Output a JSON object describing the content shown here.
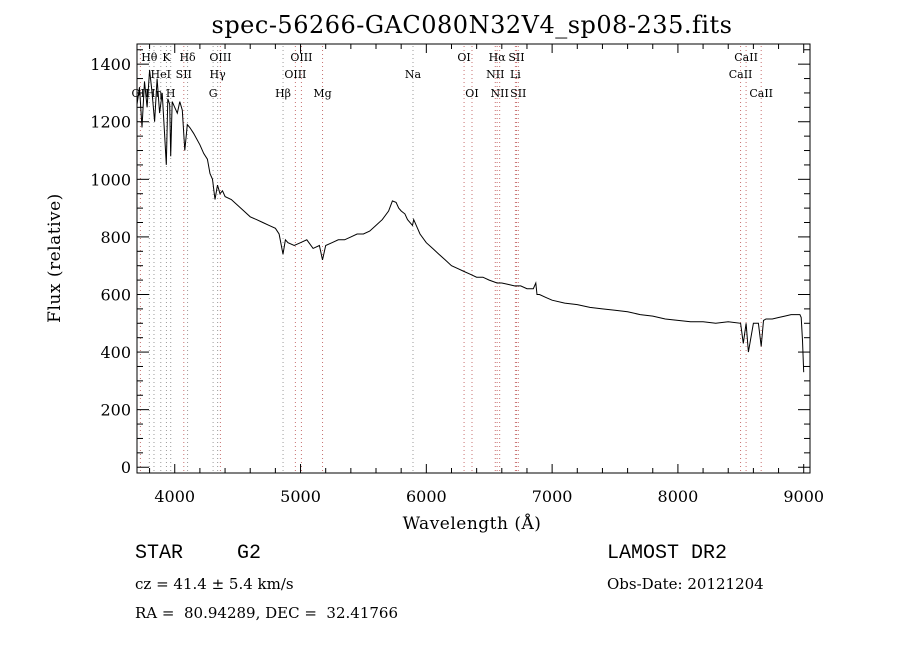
{
  "chart_data": {
    "type": "line",
    "title": "spec-56266-GAC080N32V4_sp08-235.fits",
    "xlabel": "Wavelength (Å)",
    "ylabel": "Flux (relative)",
    "xlim": [
      3700,
      9050
    ],
    "ylim": [
      -20,
      1470
    ],
    "x_ticks": [
      4000,
      5000,
      6000,
      7000,
      8000,
      9000
    ],
    "x_tick_labels": [
      "4000",
      "5000",
      "6000",
      "7000",
      "8000",
      "9000"
    ],
    "y_ticks": [
      0,
      200,
      400,
      600,
      800,
      1000,
      1200,
      1400
    ],
    "y_tick_labels": [
      "0",
      "200",
      "400",
      "600",
      "800",
      "1000",
      "1200",
      "1400"
    ],
    "grid": false,
    "series": [
      {
        "color": "#000000",
        "x": [
          3700,
          3720,
          3740,
          3760,
          3780,
          3800,
          3820,
          3840,
          3860,
          3880,
          3900,
          3920,
          3933,
          3945,
          3960,
          3968,
          3980,
          4000,
          4020,
          4040,
          4060,
          4080,
          4100,
          4120,
          4150,
          4200,
          4230,
          4260,
          4280,
          4300,
          4320,
          4340,
          4360,
          4380,
          4400,
          4450,
          4500,
          4550,
          4600,
          4650,
          4700,
          4750,
          4800,
          4830,
          4861,
          4880,
          4900,
          4950,
          5000,
          5050,
          5100,
          5150,
          5175,
          5200,
          5250,
          5300,
          5350,
          5400,
          5450,
          5500,
          5550,
          5600,
          5650,
          5700,
          5730,
          5760,
          5780,
          5800,
          5830,
          5850,
          5890,
          5900,
          5950,
          6000,
          6050,
          6100,
          6150,
          6200,
          6250,
          6300,
          6350,
          6400,
          6450,
          6500,
          6563,
          6600,
          6650,
          6700,
          6750,
          6800,
          6850,
          6870,
          6880,
          6900,
          6950,
          7000,
          7100,
          7200,
          7300,
          7400,
          7500,
          7600,
          7700,
          7800,
          7900,
          8000,
          8100,
          8200,
          8300,
          8400,
          8498,
          8520,
          8542,
          8560,
          8600,
          8640,
          8662,
          8680,
          8700,
          8750,
          8800,
          8850,
          8900,
          8950,
          8970,
          8980,
          8990,
          9000
        ],
        "y": [
          1260,
          1320,
          1180,
          1340,
          1250,
          1380,
          1300,
          1200,
          1350,
          1230,
          1300,
          1150,
          1050,
          1280,
          1260,
          1080,
          1270,
          1250,
          1230,
          1270,
          1240,
          1100,
          1190,
          1180,
          1160,
          1120,
          1090,
          1070,
          1020,
          1000,
          930,
          980,
          950,
          960,
          940,
          930,
          910,
          890,
          870,
          860,
          850,
          840,
          830,
          810,
          740,
          790,
          780,
          770,
          780,
          790,
          760,
          770,
          720,
          770,
          780,
          790,
          790,
          800,
          810,
          810,
          820,
          840,
          860,
          890,
          925,
          920,
          900,
          890,
          880,
          860,
          840,
          860,
          810,
          780,
          760,
          740,
          720,
          700,
          690,
          680,
          670,
          660,
          660,
          650,
          640,
          640,
          635,
          630,
          630,
          620,
          620,
          640,
          600,
          600,
          590,
          580,
          570,
          565,
          555,
          550,
          545,
          540,
          530,
          525,
          515,
          510,
          505,
          505,
          500,
          505,
          500,
          430,
          500,
          400,
          500,
          500,
          420,
          510,
          515,
          515,
          520,
          525,
          530,
          530,
          530,
          520,
          440,
          330
        ]
      }
    ],
    "lines": [
      {
        "name": "Hθ",
        "x": 3798,
        "row": 1,
        "color": "#9a9a9a"
      },
      {
        "name": "OII",
        "x": 3727,
        "row": 3,
        "color": "#c87070"
      },
      {
        "name": "Hη",
        "x": 3835,
        "row": 3,
        "color": "#9a9a9a"
      },
      {
        "name": "HeI",
        "x": 3889,
        "row": 2,
        "color": "#9a9a9a"
      },
      {
        "name": "K",
        "x": 3934,
        "row": 1,
        "color": "#9a9a9a"
      },
      {
        "name": "H",
        "x": 3968,
        "row": 3,
        "color": "#9a9a9a"
      },
      {
        "name": "SII",
        "x": 4072,
        "row": 2,
        "color": "#c87070"
      },
      {
        "name": "Hδ",
        "x": 4102,
        "row": 1,
        "color": "#9a9a9a"
      },
      {
        "name": "OIII",
        "x": 4363,
        "row": 1,
        "color": "#c87070"
      },
      {
        "name": "Hγ",
        "x": 4341,
        "row": 2,
        "color": "#9a9a9a"
      },
      {
        "name": "G",
        "x": 4305,
        "row": 3,
        "color": "#9a9a9a"
      },
      {
        "name": "Hβ",
        "x": 4861,
        "row": 3,
        "color": "#9a9a9a"
      },
      {
        "name": "OIII",
        "x": 5007,
        "row": 1,
        "color": "#c87070"
      },
      {
        "name": "OIII",
        "x": 4959,
        "row": 2,
        "color": "#c87070"
      },
      {
        "name": "Mg",
        "x": 5175,
        "row": 3,
        "color": "#c87070"
      },
      {
        "name": "Na",
        "x": 5894,
        "row": 2,
        "color": "#9a9a9a"
      },
      {
        "name": "OI",
        "x": 6300,
        "row": 1,
        "color": "#c87070"
      },
      {
        "name": "OI",
        "x": 6363,
        "row": 3,
        "color": "#c87070"
      },
      {
        "name": "Hα",
        "x": 6563,
        "row": 1,
        "color": "#c87070"
      },
      {
        "name": "NII",
        "x": 6548,
        "row": 2,
        "color": "#c87070"
      },
      {
        "name": "NII",
        "x": 6583,
        "row": 3,
        "color": "#c87070"
      },
      {
        "name": "SII",
        "x": 6717,
        "row": 1,
        "color": "#c87070"
      },
      {
        "name": "Li",
        "x": 6708,
        "row": 2,
        "color": "#c87070"
      },
      {
        "name": "SII",
        "x": 6731,
        "row": 3,
        "color": "#c87070"
      },
      {
        "name": "CaII",
        "x": 8542,
        "row": 1,
        "color": "#c87070"
      },
      {
        "name": "CaII",
        "x": 8498,
        "row": 2,
        "color": "#c87070"
      },
      {
        "name": "CaII",
        "x": 8662,
        "row": 3,
        "color": "#c87070"
      }
    ]
  },
  "info": {
    "class_label": "STAR",
    "subclass": "G2",
    "survey": "LAMOST DR2",
    "cz": "cz = 41.4 ± 5.4 km/s",
    "obs_date": "Obs-Date: 20121204",
    "coords": "RA =  80.94289, DEC =  32.41766"
  }
}
